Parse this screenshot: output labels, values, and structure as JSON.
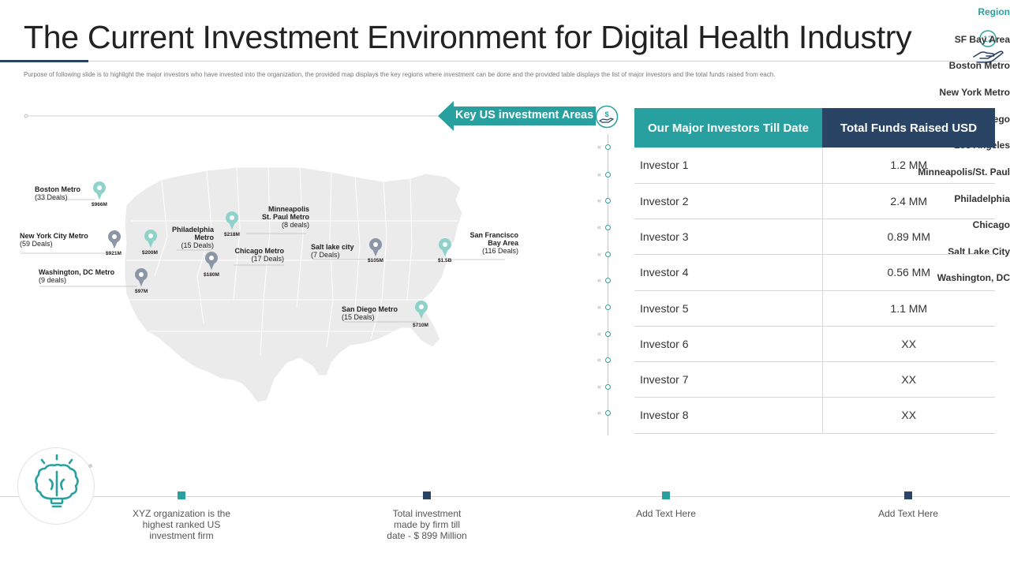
{
  "title": "The Current Investment Environment for Digital Health Industry",
  "subtitle": "Purpose of following slide is to highlight the major investors who have invested into the organization,  the provided map displays the key regions where  investment can be done  and the provided table displays the list of major investors and the total funds raised  from each.",
  "page_number": "12",
  "key_areas_label": "Key US investment Areas",
  "colors": {
    "teal": "#29a0a0",
    "navy": "#2a4466",
    "grey_pin": "#8c96a6"
  },
  "map_markers": [
    {
      "name": "Boston Metro",
      "deals": "(33 Deals)",
      "amount": "$966M"
    },
    {
      "name": "New York City Metro",
      "deals": "(59 Deals)",
      "amount": "$921M"
    },
    {
      "name": "Washington, DC Metro",
      "deals": "(9 deals)",
      "amount": "$97M"
    },
    {
      "name_line1": "Philadelphia",
      "name_line2": "Metro",
      "deals": "(15 Deals)",
      "amount": "$200M"
    },
    {
      "name_line1": "Minneapolis",
      "name_line2": "St. Paul Metro",
      "deals": "(8 deals)",
      "amount": "$218M"
    },
    {
      "name": "Chicago Metro",
      "deals": "(17 Deals)",
      "amount": "$180M"
    },
    {
      "name": "Salt lake city",
      "deals": "(7 Deals)",
      "amount": "$105M"
    },
    {
      "name_line1": "San Francisco",
      "name_line2": "Bay Area",
      "deals": "(116 Deals)",
      "amount": "$1.5B"
    },
    {
      "name": "San Diego Metro",
      "deals": "(15 Deals)",
      "amount": "$710M"
    }
  ],
  "regions": {
    "header": "Region",
    "items": [
      "SF Bay Area",
      "Boston Metro",
      "New York Metro",
      "San Diego",
      "Los Angeles",
      "Minneapolis/St. Paul",
      "Philadelphia",
      "Chicago",
      "Salt Lake City",
      "Washington, DC"
    ]
  },
  "table": {
    "headers": [
      "Our Major Investors  Till Date",
      "Total Funds Raised  USD"
    ],
    "rows": [
      [
        "Investor 1",
        "1.2 MM"
      ],
      [
        "Investor 2",
        "2.4 MM"
      ],
      [
        "Investor 3",
        "0.89 MM"
      ],
      [
        "Investor 4",
        "0.56  MM"
      ],
      [
        "Investor 5",
        "1.1 MM"
      ],
      [
        "Investor 6",
        "XX"
      ],
      [
        "Investor 7",
        "XX"
      ],
      [
        "Investor 8",
        "XX"
      ]
    ]
  },
  "timeline": [
    {
      "text": "XYZ  organization is the highest ranked US investment firm"
    },
    {
      "text": "Total investment made by firm till date - $ 899 Million"
    },
    {
      "text": "Add Text Here"
    },
    {
      "text": "Add Text Here"
    }
  ],
  "icons": {
    "page_badge": "hand-with-number-icon",
    "key_areas": "money-hand-icon",
    "timeline": "brain-lightbulb-icon"
  }
}
